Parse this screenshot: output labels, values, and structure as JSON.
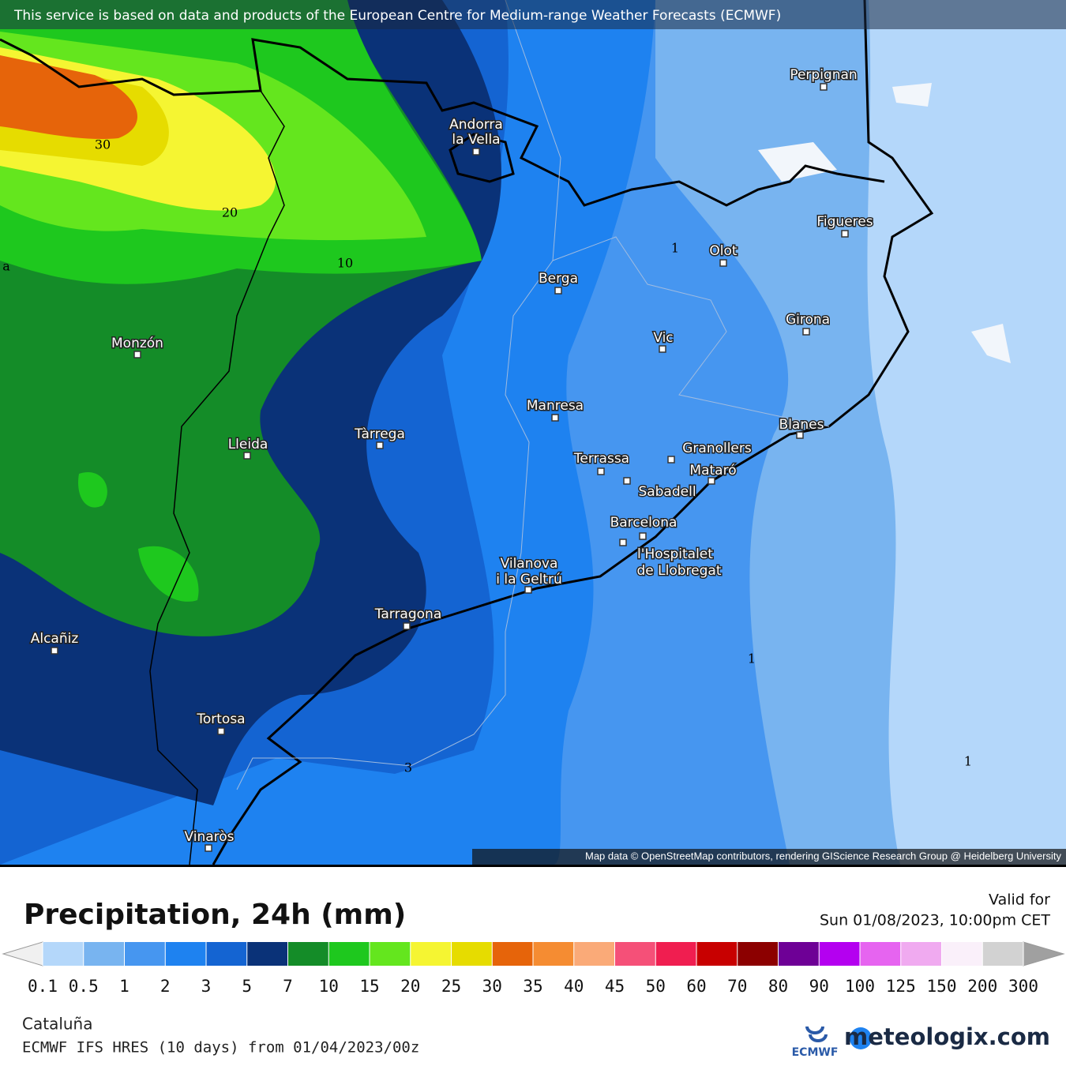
{
  "banner": "This service is based on data and products of the European Centre for Medium-range Weather Forecasts (ECMWF)",
  "attribution": "Map data © OpenStreetMap contributors, rendering GIScience Research Group @ Heidelberg University",
  "map": {
    "cities": [
      "Perpignan",
      [
        "Andorra",
        "la Vella"
      ],
      "Figueres",
      "Olot",
      "Berga",
      "Girona",
      "Vic",
      "Monzón",
      "Manresa",
      "Blanes",
      "Tàrrega",
      "Lleida",
      "Granollers",
      "Terrassa",
      "Mataró",
      "Sabadell",
      "Barcelona",
      [
        "l'Hospitalet",
        "de Llobregat"
      ],
      [
        "Vilanova",
        "i la Geltrú"
      ],
      "Tarragona",
      "Alcañiz",
      "Tortosa",
      "Vinaròs"
    ],
    "contour_labels": [
      "30",
      "20",
      "10",
      "1",
      "1",
      "1",
      "3",
      "a"
    ]
  },
  "legend": {
    "title": "Precipitation, 24h (mm)",
    "ticks": [
      0.1,
      0.5,
      1,
      2,
      3,
      5,
      7,
      10,
      15,
      20,
      25,
      30,
      35,
      40,
      45,
      50,
      60,
      70,
      80,
      90,
      100,
      125,
      150,
      200,
      300
    ],
    "colors": [
      "#b4d7fa",
      "#78b4f0",
      "#4696f0",
      "#1e82f0",
      "#1464d2",
      "#0a3278",
      "#148c28",
      "#1ec81e",
      "#64e61e",
      "#f5f532",
      "#e6dc00",
      "#e6640a",
      "#f58c32",
      "#faaa78",
      "#f55078",
      "#f01e50",
      "#c80000",
      "#8c0000",
      "#6e0096",
      "#b400f0",
      "#e664f0",
      "#f0aaf0",
      "#faf0fa",
      "#d2d2d2"
    ],
    "under_color": "#f0f0f0",
    "over_color": "#a0a0a0"
  },
  "valid_label": "Valid for",
  "valid_time": "Sun 01/08/2023, 10:00pm CET",
  "region": "Cataluña",
  "model": "ECMWF IFS HRES (10 days) from 01/04/2023/00z",
  "ecmwf_logo": "ECMWF",
  "brand": "meteologix.com"
}
